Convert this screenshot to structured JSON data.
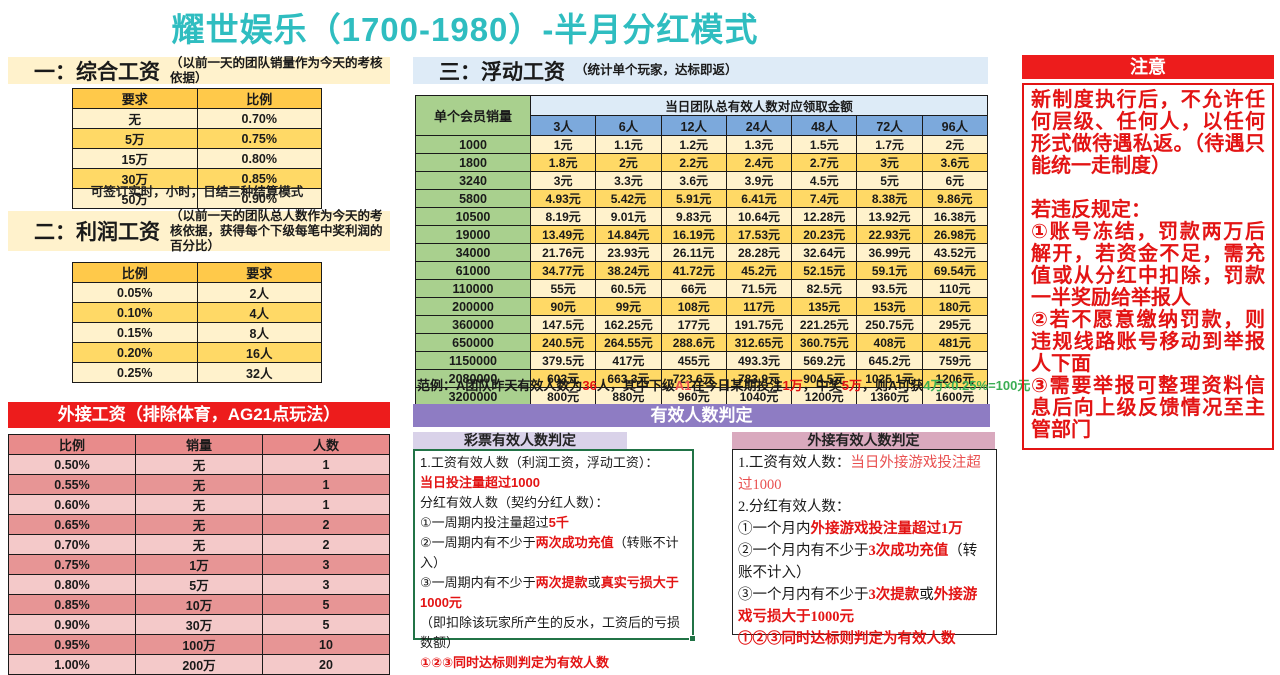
{
  "title": "耀世娱乐（1700-1980）-半月分红模式",
  "colors": {
    "accent_teal": "#2FBDC0",
    "cream": "#FFF2CC",
    "gold": "#FFD966",
    "header_gold": "#FFC94A",
    "red": "#ED1C1C",
    "red_text": "#E31414",
    "pink_light": "#F4C9C9",
    "pink_dark": "#E79595",
    "green_column": "#A9D08E",
    "blue_subheader": "#7CA9DC",
    "blue_light": "#DDEBF7",
    "purple": "#8E7CC3",
    "purple_light": "#D9D2E9",
    "mauve": "#D9A9BE",
    "green_text": "#3BAE54",
    "green_border": "#217346"
  },
  "comprehensive": {
    "heading": "一：综合工资",
    "note": "（以前一天的团队销量作为今天的考核依据）",
    "headers": [
      "要求",
      "比例"
    ],
    "rows": [
      [
        "无",
        "0.70%"
      ],
      [
        "5万",
        "0.75%"
      ],
      [
        "15万",
        "0.80%"
      ],
      [
        "30万",
        "0.85%"
      ],
      [
        "50万",
        "0.90%"
      ]
    ],
    "footnote": "可签订实时，小时，日结三种结算模式"
  },
  "profit": {
    "heading": "二：利润工资",
    "note": "（以前一天的团队总人数作为今天的考核依据，获得每个下级每笔中奖利润的百分比）",
    "headers": [
      "比例",
      "要求"
    ],
    "rows": [
      [
        "0.05%",
        "2人"
      ],
      [
        "0.10%",
        "4人"
      ],
      [
        "0.15%",
        "8人"
      ],
      [
        "0.20%",
        "16人"
      ],
      [
        "0.25%",
        "32人"
      ]
    ]
  },
  "external_salary": {
    "heading": "外接工资（排除体育，AG21点玩法）",
    "headers": [
      "比例",
      "销量",
      "人数"
    ],
    "rows": [
      [
        "0.50%",
        "无",
        "1"
      ],
      [
        "0.55%",
        "无",
        "1"
      ],
      [
        "0.60%",
        "无",
        "1"
      ],
      [
        "0.65%",
        "无",
        "2"
      ],
      [
        "0.70%",
        "无",
        "2"
      ],
      [
        "0.75%",
        "1万",
        "3"
      ],
      [
        "0.80%",
        "5万",
        "3"
      ],
      [
        "0.85%",
        "10万",
        "5"
      ],
      [
        "0.90%",
        "30万",
        "5"
      ],
      [
        "0.95%",
        "100万",
        "10"
      ],
      [
        "1.00%",
        "200万",
        "20"
      ]
    ]
  },
  "floating": {
    "heading": "三：浮动工资",
    "note": "（统计单个玩家，达标即返）",
    "corner_header": "单个会员销量",
    "group_header": "当日团队总有效人数对应领取金额",
    "col_headers": [
      "3人",
      "6人",
      "12人",
      "24人",
      "48人",
      "72人",
      "96人"
    ],
    "rows": [
      [
        "1000",
        "1元",
        "1.1元",
        "1.2元",
        "1.3元",
        "1.5元",
        "1.7元",
        "2元"
      ],
      [
        "1800",
        "1.8元",
        "2元",
        "2.2元",
        "2.4元",
        "2.7元",
        "3元",
        "3.6元"
      ],
      [
        "3240",
        "3元",
        "3.3元",
        "3.6元",
        "3.9元",
        "4.5元",
        "5元",
        "6元"
      ],
      [
        "5800",
        "4.93元",
        "5.42元",
        "5.91元",
        "6.41元",
        "7.4元",
        "8.38元",
        "9.86元"
      ],
      [
        "10500",
        "8.19元",
        "9.01元",
        "9.83元",
        "10.64元",
        "12.28元",
        "13.92元",
        "16.38元"
      ],
      [
        "19000",
        "13.49元",
        "14.84元",
        "16.19元",
        "17.53元",
        "20.23元",
        "22.93元",
        "26.98元"
      ],
      [
        "34000",
        "21.76元",
        "23.93元",
        "26.11元",
        "28.28元",
        "32.64元",
        "36.99元",
        "43.52元"
      ],
      [
        "61000",
        "34.77元",
        "38.24元",
        "41.72元",
        "45.2元",
        "52.15元",
        "59.1元",
        "69.54元"
      ],
      [
        "110000",
        "55元",
        "60.5元",
        "66元",
        "71.5元",
        "82.5元",
        "93.5元",
        "110元"
      ],
      [
        "200000",
        "90元",
        "99元",
        "108元",
        "117元",
        "135元",
        "153元",
        "180元"
      ],
      [
        "360000",
        "147.5元",
        "162.25元",
        "177元",
        "191.75元",
        "221.25元",
        "250.75元",
        "295元"
      ],
      [
        "650000",
        "240.5元",
        "264.55元",
        "288.6元",
        "312.65元",
        "360.75元",
        "408元",
        "481元"
      ],
      [
        "1150000",
        "379.5元",
        "417元",
        "455元",
        "493.3元",
        "569.2元",
        "645.2元",
        "759元"
      ],
      [
        "2080000",
        "603元",
        "663.3元",
        "723.6元",
        "783.9元",
        "904.5元",
        "1025.1元",
        "1206元"
      ],
      [
        "3200000",
        "800元",
        "880元",
        "960元",
        "1040元",
        "1200元",
        "1360元",
        "1600元"
      ]
    ],
    "example": [
      {
        "t": "范例：A团队昨天有效人数为",
        "c": "k"
      },
      {
        "t": "36",
        "c": "r"
      },
      {
        "t": "人，其中下级",
        "c": "k"
      },
      {
        "t": "A1",
        "c": "r2"
      },
      {
        "t": "在今日某期投注",
        "c": "k"
      },
      {
        "t": "1万",
        "c": "r"
      },
      {
        "t": "，中奖",
        "c": "k"
      },
      {
        "t": "5万",
        "c": "r"
      },
      {
        "t": "，则A可获",
        "c": "k"
      },
      {
        "t": "4万×0.25%=100元",
        "c": "g"
      }
    ]
  },
  "judgement": {
    "heading": "有效人数判定",
    "lottery": {
      "heading": "彩票有效人数判定",
      "lines": [
        [
          {
            "t": "1.工资有效人数（利润工资，浮动工资）：",
            "c": "k"
          }
        ],
        [
          {
            "t": "当日投注量超过1000",
            "c": "r"
          }
        ],
        [
          {
            "t": "分红有效人数（契约分红人数）：",
            "c": "k"
          }
        ],
        [
          {
            "t": "①一周期内投注量超过",
            "c": "k"
          },
          {
            "t": "5千",
            "c": "r"
          }
        ],
        [
          {
            "t": "②一周期内有不少于",
            "c": "k"
          },
          {
            "t": "两次成功充值",
            "c": "r"
          },
          {
            "t": "（转账不计入）",
            "c": "k"
          }
        ],
        [
          {
            "t": "③一周期内有不少于",
            "c": "k"
          },
          {
            "t": "两次提款",
            "c": "r"
          },
          {
            "t": "或",
            "c": "k"
          },
          {
            "t": "真实亏损大于1000元",
            "c": "r"
          }
        ],
        [
          {
            "t": "（即扣除该玩家所产生的反水，工资后的亏损数额）",
            "c": "k"
          }
        ],
        [
          {
            "t": "①②③同时达标则判定为有效人数",
            "c": "r"
          }
        ]
      ]
    },
    "external": {
      "heading": "外接有效人数判定",
      "lines": [
        [
          {
            "t": "1.工资有效人数：",
            "c": "k"
          },
          {
            "t": "当日外接游戏投注超过1000",
            "c": "r2"
          }
        ],
        [
          {
            "t": "2.分红有效人数：",
            "c": "k"
          }
        ],
        [
          {
            "t": "①一个月内",
            "c": "k"
          },
          {
            "t": "外接游戏投注量超过1万",
            "c": "r"
          }
        ],
        [
          {
            "t": "②一个月内有不少于",
            "c": "k"
          },
          {
            "t": "3次成功充值",
            "c": "r"
          },
          {
            "t": "（转账不计入）",
            "c": "k"
          }
        ],
        [
          {
            "t": "③一个月内有不少于",
            "c": "k"
          },
          {
            "t": "3次提款",
            "c": "r"
          },
          {
            "t": "或",
            "c": "k"
          },
          {
            "t": "外接游戏亏损大于1000元",
            "c": "r"
          }
        ],
        [
          {
            "t": "①②③同时达标则判定为有效人数",
            "c": "r"
          }
        ]
      ]
    }
  },
  "notice": {
    "heading": "注意",
    "paragraphs": [
      "新制度执行后，不允许任何层级、任何人，以任何形式做待遇私返。（待遇只能统一走制度）",
      "若违反规定：",
      "①账号冻结，罚款两万后解开，若资金不足，需充值或从分红中扣除，罚款一半奖励给举报人",
      "②若不愿意缴纳罚款，则违规线路账号移动到举报人下面",
      "③需要举报可整理资料信息后向上级反馈情况至主管部门"
    ]
  }
}
